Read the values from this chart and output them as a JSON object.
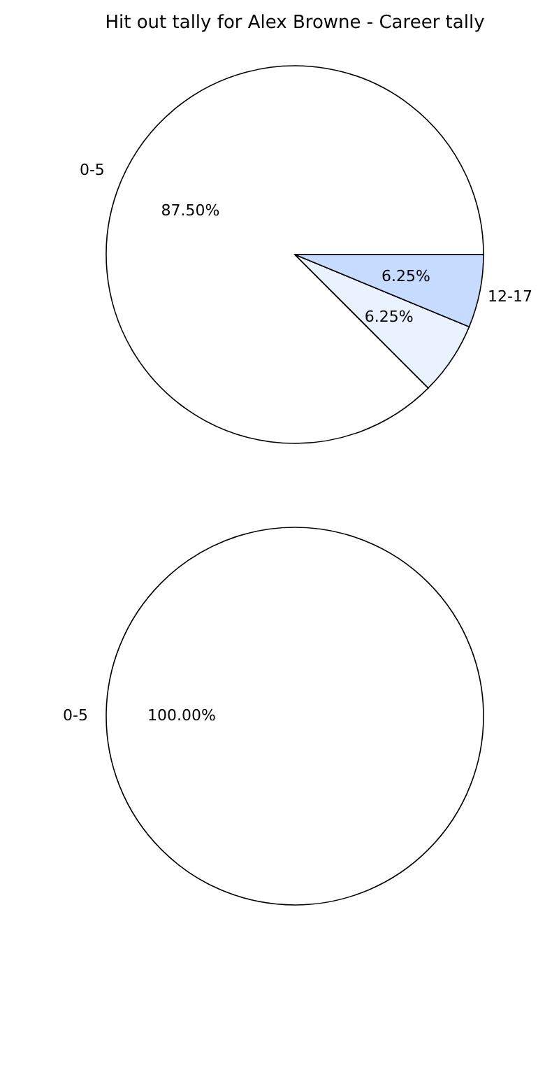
{
  "chart_data": [
    {
      "type": "pie",
      "title": "Hit out tally for Alex Browne - Career tally",
      "categories": [
        "0-5",
        null,
        "12-17"
      ],
      "values": [
        87.5,
        6.25,
        6.25
      ],
      "colors": [
        "#ffffff",
        "#eaf2ff",
        "#c6dbff"
      ],
      "value_labels": [
        "87.50%",
        "6.25%",
        "6.25%"
      ]
    },
    {
      "type": "pie",
      "categories": [
        "0-5"
      ],
      "values": [
        100
      ],
      "colors": [
        "#ffffff"
      ],
      "value_labels": [
        "100.00%"
      ]
    }
  ]
}
